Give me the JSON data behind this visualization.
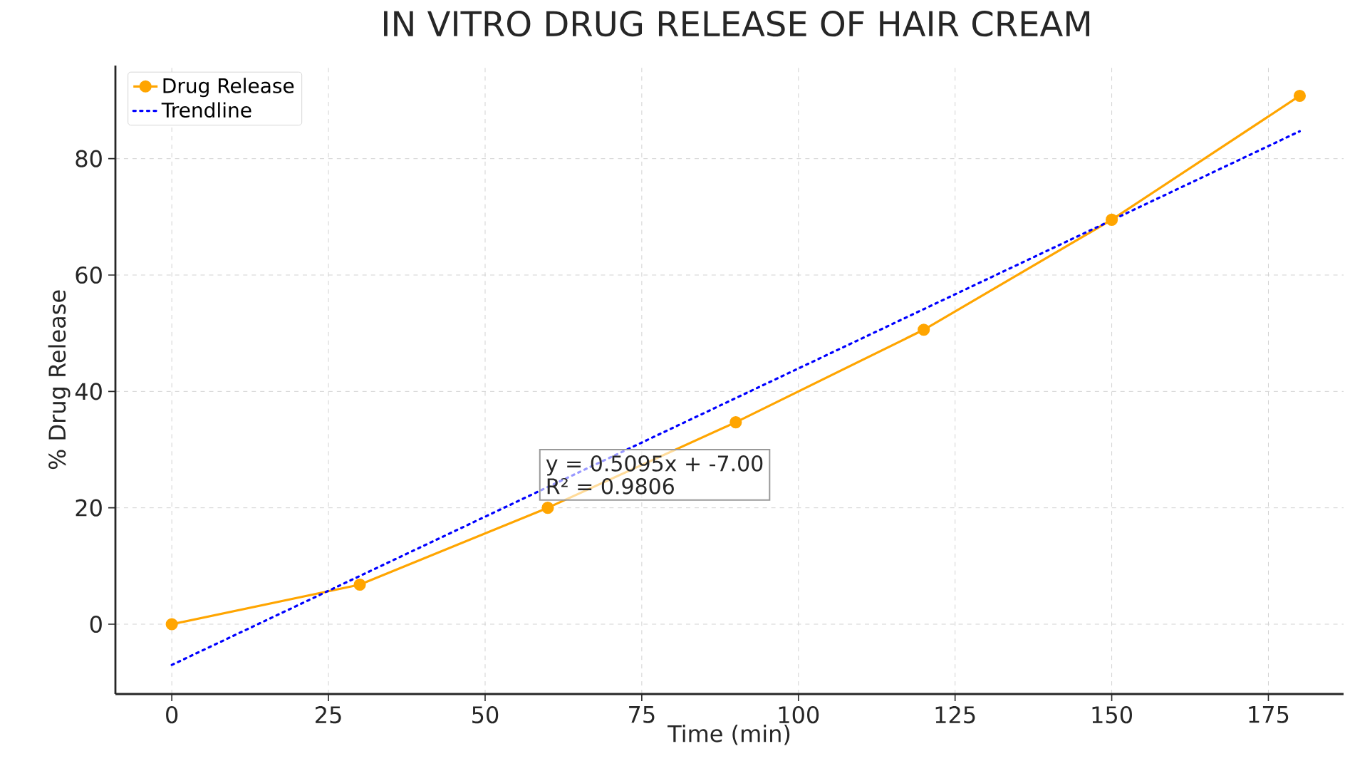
{
  "chart_data": {
    "type": "line",
    "title": "IN VITRO DRUG RELEASE OF HAIR CREAM",
    "xlabel": "Time (min)",
    "ylabel": "% Drug Release",
    "x": [
      0,
      30,
      60,
      90,
      120,
      150,
      180
    ],
    "series": [
      {
        "name": "Drug Release",
        "color": "#ffa500",
        "values": [
          0,
          6.8,
          20.0,
          34.7,
          50.6,
          69.5,
          90.8
        ],
        "marker": "circle",
        "line_style": "solid"
      },
      {
        "name": "Trendline",
        "type": "line",
        "color": "#0000ff",
        "x": [
          0,
          180
        ],
        "values": [
          -7.0,
          84.71
        ],
        "marker": "none",
        "line_style": "dotted"
      }
    ],
    "annotations": [
      "y = 0.5095x + -7.00",
      "R² = 0.9806"
    ],
    "xlim": [
      -9,
      187
    ],
    "ylim": [
      -12,
      96
    ],
    "xticks": [
      0,
      25,
      50,
      75,
      100,
      125,
      150,
      175
    ],
    "yticks": [
      0,
      20,
      40,
      60,
      80
    ],
    "grid": true,
    "legend": "top left"
  }
}
